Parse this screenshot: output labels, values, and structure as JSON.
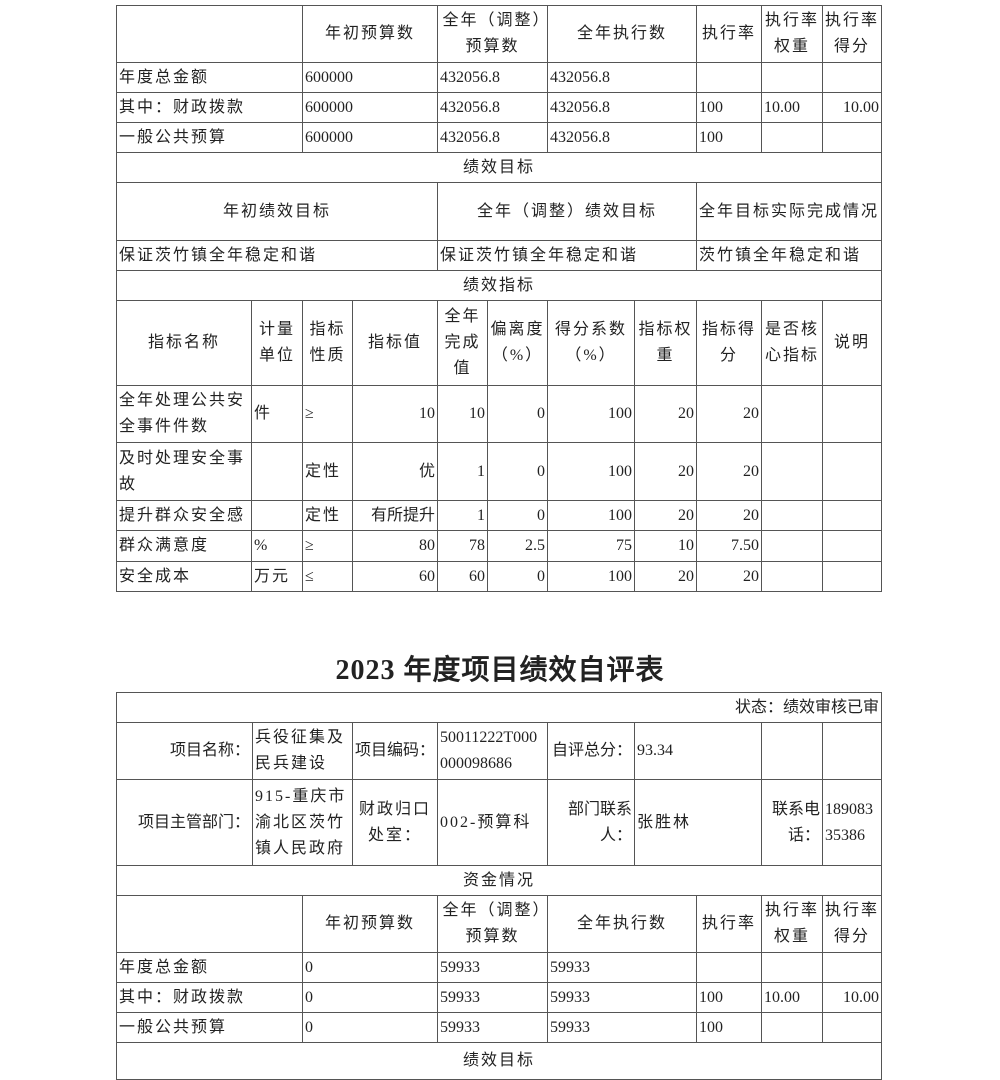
{
  "table1": {
    "budget": {
      "headers": [
        "",
        "年初预算数",
        "全年（调整）预算数",
        "全年执行数",
        "执行率",
        "执行率权重",
        "执行率得分"
      ],
      "rows": [
        [
          "年度总金额",
          "600000",
          "432056.8",
          "432056.8",
          "",
          "",
          ""
        ],
        [
          "其中：财政拨款",
          "600000",
          "432056.8",
          "432056.8",
          "100",
          "10.00",
          "10.00"
        ],
        [
          "一般公共预算",
          "600000",
          "432056.8",
          "432056.8",
          "100",
          "",
          ""
        ]
      ]
    },
    "goals_title": "绩效目标",
    "goals_headers": [
      "年初绩效目标",
      "全年（调整）绩效目标",
      "全年目标实际完成情况"
    ],
    "goals_values": [
      "保证茨竹镇全年稳定和谐",
      "保证茨竹镇全年稳定和谐",
      "茨竹镇全年稳定和谐"
    ],
    "indicators_title": "绩效指标",
    "indicator_headers": [
      "指标名称",
      "计量单位",
      "指标性质",
      "指标值",
      "全年完成值",
      "偏离度（%）",
      "得分系数（%）",
      "指标权重",
      "指标得分",
      "是否核心指标",
      "说明"
    ],
    "indicator_rows": [
      [
        "全年处理公共安全事件件数",
        "件",
        "≥",
        "10",
        "10",
        "0",
        "100",
        "20",
        "20",
        "",
        ""
      ],
      [
        "及时处理安全事故",
        "",
        "定性",
        "优",
        "1",
        "0",
        "100",
        "20",
        "20",
        "",
        ""
      ],
      [
        "提升群众安全感",
        "",
        "定性",
        "有所提升",
        "1",
        "0",
        "100",
        "20",
        "20",
        "",
        ""
      ],
      [
        "群众满意度",
        "%",
        "≥",
        "80",
        "78",
        "2.5",
        "75",
        "10",
        "7.50",
        "",
        ""
      ],
      [
        "安全成本",
        "万元",
        "≤",
        "60",
        "60",
        "0",
        "100",
        "20",
        "20",
        "",
        ""
      ]
    ]
  },
  "section2_title": "2023 年度项目绩效自评表",
  "table2": {
    "status": "状态：绩效审核已审",
    "project_name_label": "项目名称：",
    "project_name": "兵役征集及民兵建设",
    "project_code_label": "项目编码：",
    "project_code": "50011222T000000098686",
    "score_label": "自评总分：",
    "score": "93.34",
    "dept_label": "项目主管部门：",
    "dept": "915-重庆市渝北区茨竹镇人民政府",
    "finance_office_label": "财政归口处室：",
    "finance_office": "002-预算科",
    "contact_label": "部门联系人：",
    "contact": "张胜林",
    "phone_label": "联系电话：",
    "phone": "18908335386",
    "funds_title": "资金情况",
    "budget": {
      "headers": [
        "",
        "年初预算数",
        "全年（调整）预算数",
        "全年执行数",
        "执行率",
        "执行率权重",
        "执行率得分"
      ],
      "rows": [
        [
          "年度总金额",
          "0",
          "59933",
          "59933",
          "",
          "",
          ""
        ],
        [
          "其中：财政拨款",
          "0",
          "59933",
          "59933",
          "100",
          "10.00",
          "10.00"
        ],
        [
          "一般公共预算",
          "0",
          "59933",
          "59933",
          "100",
          "",
          ""
        ]
      ]
    },
    "goals_title": "绩效目标"
  }
}
